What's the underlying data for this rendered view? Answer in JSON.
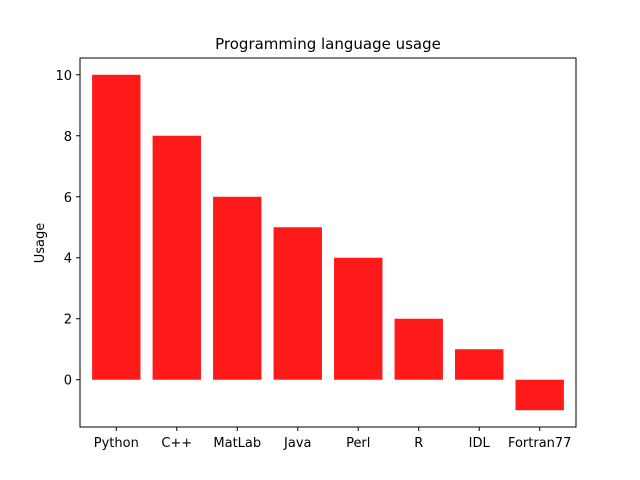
{
  "chart_data": {
    "type": "bar",
    "title": "Programming language usage",
    "xlabel": "",
    "ylabel": "Usage",
    "categories": [
      "Python",
      "C++",
      "MatLab",
      "Java",
      "Perl",
      "R",
      "IDL",
      "Fortran77"
    ],
    "values": [
      10,
      8,
      6,
      5,
      4,
      2,
      1,
      -1
    ],
    "ylim": [
      -1.55,
      10.55
    ],
    "yticks": [
      0,
      2,
      4,
      6,
      8,
      10
    ],
    "bar_color": "#ff1a1a",
    "grid": false,
    "legend": "none"
  }
}
